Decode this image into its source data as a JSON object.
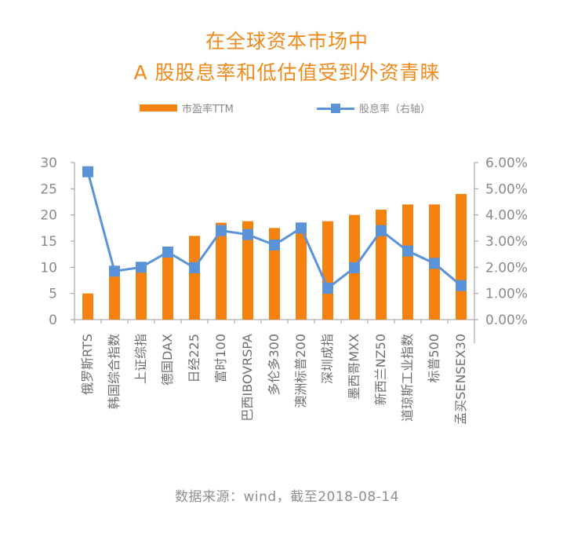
{
  "title_line1": "在全球资本市场中",
  "title_line2": "A 股股息率和低估值受到外资青睐",
  "legend": {
    "bar_label": "市盈率TTM",
    "line_label": "股息率（右轴）"
  },
  "source_text": "数据来源：wind，截至2018-08-14",
  "colors": {
    "title": "#F08A1C",
    "bar": "#F5820F",
    "line": "#5B93D8",
    "axis": "#9a9a9a",
    "text": "#8a8a8a"
  },
  "chart_data": {
    "type": "bar+line",
    "categories": [
      "俄罗斯RTS",
      "韩国综合指数",
      "上证综指",
      "德国DAX",
      "日经225",
      "富时100",
      "巴西IBOVRSPA",
      "多伦多300",
      "澳洲标普200",
      "深圳成指",
      "墨西哥MXX",
      "新西兰NZ50",
      "道琼斯工业指数",
      "标普500",
      "孟买SENSEX30"
    ],
    "series": [
      {
        "name": "市盈率TTM",
        "type": "bar",
        "axis": "left",
        "values": [
          5,
          10,
          10.5,
          13,
          16,
          18.5,
          18.8,
          17.5,
          17.5,
          18.8,
          20,
          21,
          22,
          22,
          24
        ]
      },
      {
        "name": "股息率（右轴）",
        "type": "line",
        "axis": "right",
        "values": [
          5.65,
          1.85,
          2.0,
          2.58,
          1.98,
          3.4,
          3.25,
          2.85,
          3.5,
          1.2,
          1.98,
          3.4,
          2.62,
          2.15,
          1.3
        ]
      }
    ],
    "ylim_left": [
      0,
      30
    ],
    "yticks_left": [
      "0",
      "5",
      "10",
      "15",
      "20",
      "25",
      "30"
    ],
    "ylim_right": [
      0,
      6
    ],
    "yticks_right": [
      "0.00%",
      "1.00%",
      "2.00%",
      "3.00%",
      "4.00%",
      "5.00%",
      "6.00%"
    ]
  }
}
